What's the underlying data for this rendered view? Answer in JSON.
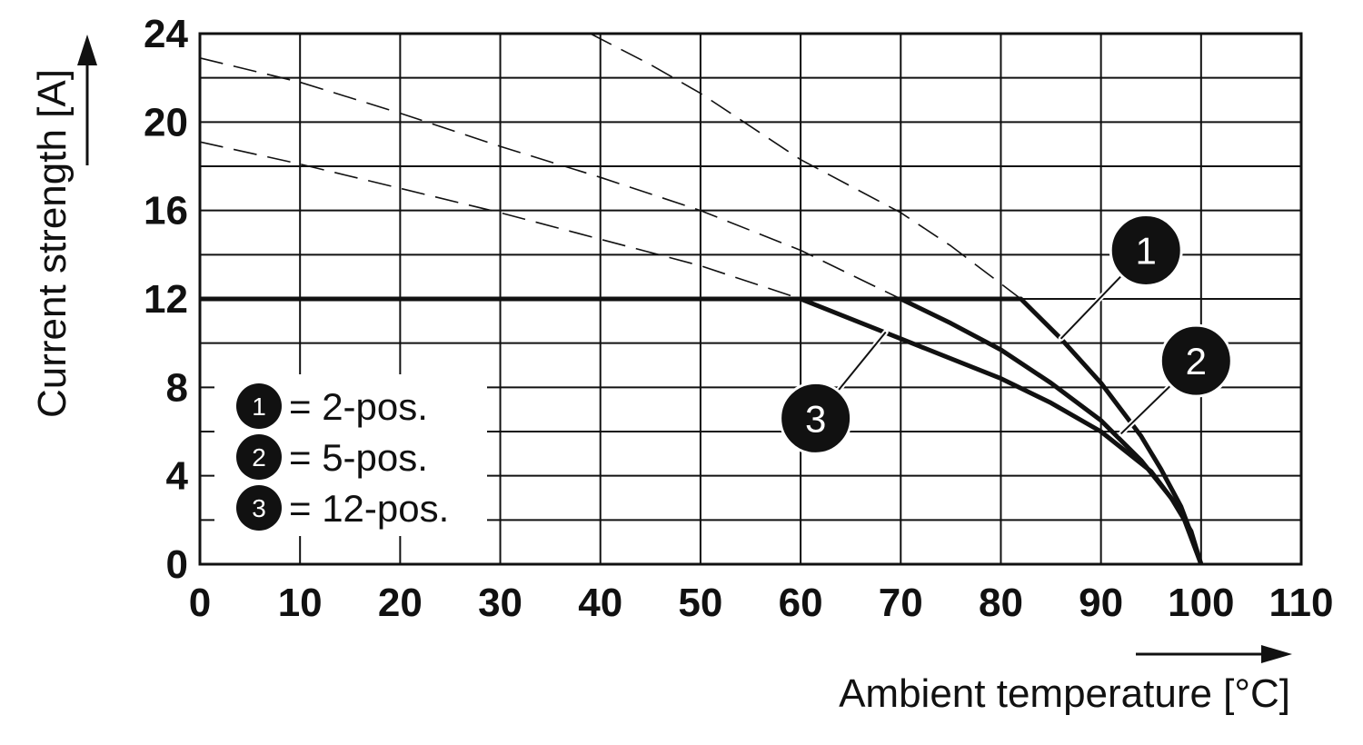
{
  "chart_data": {
    "type": "line",
    "xlabel": "Ambient temperature [°C]",
    "ylabel": "Current strength [A]",
    "xlim": [
      0,
      110
    ],
    "ylim": [
      0,
      24
    ],
    "x_ticks": [
      0,
      10,
      20,
      30,
      40,
      50,
      60,
      70,
      80,
      90,
      100,
      110
    ],
    "y_ticks": [
      0,
      4,
      8,
      12,
      16,
      20,
      24
    ],
    "grid": true,
    "y_minor_step": 2,
    "legend": {
      "position": "bottom-left",
      "entries": [
        {
          "marker": "1",
          "label": "= 2-pos."
        },
        {
          "marker": "2",
          "label": "= 5-pos."
        },
        {
          "marker": "3",
          "label": "= 12-pos."
        }
      ]
    },
    "series": [
      {
        "marker": "1",
        "style": "solid",
        "x": [
          0,
          82,
          86,
          90,
          94,
          96,
          98,
          99,
          100
        ],
        "y": [
          12,
          12,
          10.2,
          8.2,
          5.8,
          4.3,
          2.6,
          1.4,
          0
        ]
      },
      {
        "marker": "2",
        "style": "solid",
        "x": [
          70,
          75,
          80,
          85,
          90,
          94,
          97,
          99,
          100
        ],
        "y": [
          12,
          10.9,
          9.7,
          8.2,
          6.5,
          4.7,
          3.0,
          1.5,
          0
        ]
      },
      {
        "marker": "3",
        "style": "solid",
        "x": [
          60,
          65,
          70,
          75,
          80,
          85,
          90,
          95,
          98,
          100
        ],
        "y": [
          12,
          11.1,
          10.2,
          9.3,
          8.4,
          7.3,
          6.0,
          4.2,
          2.4,
          0
        ]
      },
      {
        "marker": "1",
        "style": "dashed",
        "x": [
          39,
          45,
          50,
          55,
          60,
          65,
          70,
          75,
          82
        ],
        "y": [
          24,
          22.6,
          21.3,
          19.8,
          18.3,
          17.1,
          15.9,
          14.4,
          12
        ]
      },
      {
        "marker": "2",
        "style": "dashed",
        "x": [
          0,
          10,
          20,
          30,
          40,
          50,
          60,
          70
        ],
        "y": [
          22.9,
          21.8,
          20.4,
          18.9,
          17.5,
          16.0,
          14.2,
          12
        ]
      },
      {
        "marker": "3",
        "style": "dashed",
        "x": [
          0,
          10,
          20,
          30,
          40,
          50,
          60
        ],
        "y": [
          19.1,
          18.1,
          17.0,
          15.9,
          14.7,
          13.5,
          12
        ]
      }
    ],
    "markers": [
      {
        "label": "1",
        "x": 94.5,
        "y": 14.2,
        "points_to": {
          "x": 86,
          "y": 10.2
        }
      },
      {
        "label": "2",
        "x": 99.5,
        "y": 9.2,
        "points_to": {
          "x": 92,
          "y": 5.9
        }
      },
      {
        "label": "3",
        "x": 61.5,
        "y": 6.6,
        "points_to": {
          "x": 68.5,
          "y": 10.5
        }
      }
    ]
  }
}
